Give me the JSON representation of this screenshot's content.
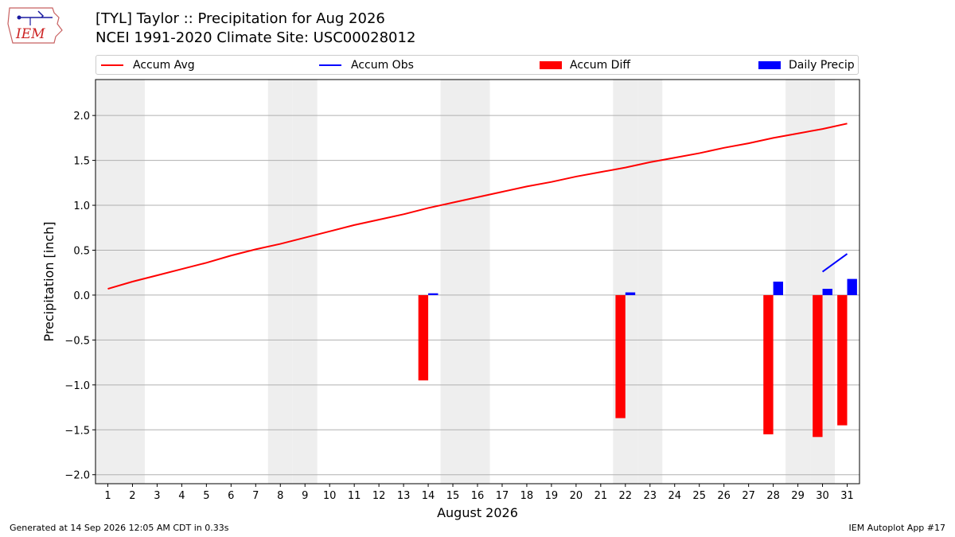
{
  "header": {
    "title_line1": "[TYL] Taylor :: Precipitation for Aug 2026",
    "title_line2": "NCEI 1991-2020 Climate Site: USC00028012"
  },
  "logo": {
    "text": "IEM",
    "icon": "iem-iowa-logo"
  },
  "legend": {
    "accum_avg": "Accum Avg",
    "accum_obs": "Accum Obs",
    "accum_diff": "Accum Diff",
    "daily_precip": "Daily Precip"
  },
  "colors": {
    "accum_avg": "#ff0000",
    "accum_obs": "#0000ff",
    "accum_diff": "#ff0000",
    "daily_precip": "#0000ff",
    "weekend_shade": "#eeeeee",
    "grid": "#b0b0b0"
  },
  "footer": {
    "generated": "Generated at 14 Sep 2026 12:05 AM CDT in 0.33s",
    "app": "IEM Autoplot App #17"
  },
  "chart_data": {
    "type": "bar",
    "xlabel": "August 2026",
    "ylabel": "Precipitation [inch]",
    "xlim": [
      0.5,
      31.5
    ],
    "ylim": [
      -2.1,
      2.4
    ],
    "yticks": [
      -2.0,
      -1.5,
      -1.0,
      -0.5,
      0.0,
      0.5,
      1.0,
      1.5,
      2.0
    ],
    "ytick_labels": [
      "−2.0",
      "−1.5",
      "−1.0",
      "−0.5",
      "0.0",
      "0.5",
      "1.0",
      "1.5",
      "2.0"
    ],
    "grid": "horizontal",
    "legend_position": "top",
    "weekend_days": [
      1,
      2,
      8,
      9,
      15,
      16,
      22,
      23,
      29,
      30
    ],
    "days": [
      1,
      2,
      3,
      4,
      5,
      6,
      7,
      8,
      9,
      10,
      11,
      12,
      13,
      14,
      15,
      16,
      17,
      18,
      19,
      20,
      21,
      22,
      23,
      24,
      25,
      26,
      27,
      28,
      29,
      30,
      31
    ],
    "series": [
      {
        "name": "Accum Avg",
        "type": "line",
        "x": [
          1,
          2,
          3,
          4,
          5,
          6,
          7,
          8,
          9,
          10,
          11,
          12,
          13,
          14,
          15,
          16,
          17,
          18,
          19,
          20,
          21,
          22,
          23,
          24,
          25,
          26,
          27,
          28,
          29,
          30,
          31
        ],
        "values": [
          0.07,
          0.15,
          0.22,
          0.29,
          0.36,
          0.44,
          0.51,
          0.57,
          0.64,
          0.71,
          0.78,
          0.84,
          0.9,
          0.97,
          1.03,
          1.09,
          1.15,
          1.21,
          1.26,
          1.32,
          1.37,
          1.42,
          1.48,
          1.53,
          1.58,
          1.64,
          1.69,
          1.75,
          1.8,
          1.85,
          1.91
        ]
      },
      {
        "name": "Accum Obs",
        "type": "line",
        "x": [
          30,
          31
        ],
        "values": [
          0.26,
          0.46
        ]
      },
      {
        "name": "Accum Diff",
        "type": "bar",
        "x": [
          14,
          22,
          28,
          30,
          31
        ],
        "values": [
          -0.95,
          -1.37,
          -1.55,
          -1.58,
          -1.45
        ]
      },
      {
        "name": "Daily Precip",
        "type": "bar",
        "x": [
          14,
          22,
          28,
          30,
          31
        ],
        "values": [
          0.02,
          0.03,
          0.15,
          0.07,
          0.18
        ]
      }
    ]
  }
}
